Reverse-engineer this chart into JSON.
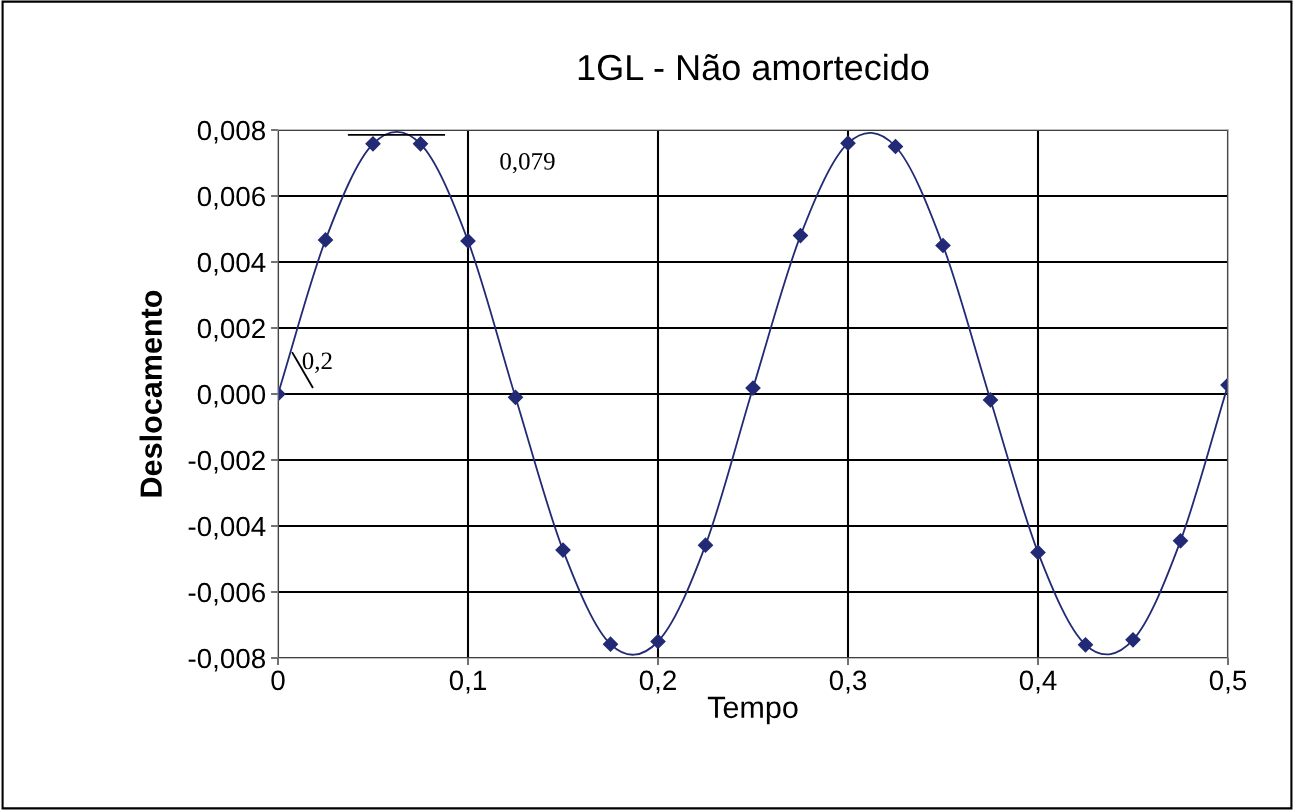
{
  "chart_data": {
    "type": "line",
    "title": "1GL - Não amortecido",
    "xlabel": "Tempo",
    "ylabel": "Deslocamento",
    "x": [
      0,
      0.025,
      0.05,
      0.075,
      0.1,
      0.125,
      0.15,
      0.175,
      0.2,
      0.225,
      0.25,
      0.275,
      0.3,
      0.325,
      0.35,
      0.375,
      0.4,
      0.425,
      0.45,
      0.475,
      0.5
    ],
    "series": [
      {
        "color": "#232a75",
        "values": [
          0,
          0.00467,
          0.00758,
          0.00758,
          0.00464,
          -0.0001,
          -0.00473,
          -0.00758,
          -0.0075,
          -0.00458,
          0.00018,
          0.0048,
          0.0076,
          0.0075,
          0.0045,
          -0.00018,
          -0.0048,
          -0.0076,
          -0.00745,
          -0.00445,
          0.00027
        ]
      },
      {
        "color": "#000000",
        "marker": "none",
        "x": [
          0.0368,
          0.0879
        ],
        "values": [
          0.00785,
          0.00785
        ]
      },
      {
        "color": "#000000",
        "marker": "none",
        "x": [
          0.0074,
          0.0184
        ],
        "values": [
          0.00127,
          0.00018
        ]
      }
    ],
    "marker": "diamond",
    "line_style": "solid",
    "grid": true,
    "legend": false,
    "xlim": [
      0,
      0.5
    ],
    "xticks": [
      {
        "value": 0,
        "label": "0"
      },
      {
        "value": 0.1,
        "label": "0,1"
      },
      {
        "value": 0.2,
        "label": "0,2"
      },
      {
        "value": 0.3,
        "label": "0,3"
      },
      {
        "value": 0.4,
        "label": "0,4"
      },
      {
        "value": 0.5,
        "label": "0,5"
      }
    ],
    "ylim": [
      -0.008,
      0.008
    ],
    "yticks": [
      {
        "value": -0.008,
        "label": "-0,008"
      },
      {
        "value": -0.006,
        "label": "-0,006"
      },
      {
        "value": -0.004,
        "label": "-0,004"
      },
      {
        "value": -0.002,
        "label": "-0,002"
      },
      {
        "value": 0,
        "label": "0,000"
      },
      {
        "value": 0.002,
        "label": "0,002"
      },
      {
        "value": 0.004,
        "label": "0,004"
      },
      {
        "value": 0.006,
        "label": "0,006"
      },
      {
        "value": 0.008,
        "label": "0,008"
      }
    ],
    "annotations": [
      "0,079",
      "0,2"
    ]
  }
}
